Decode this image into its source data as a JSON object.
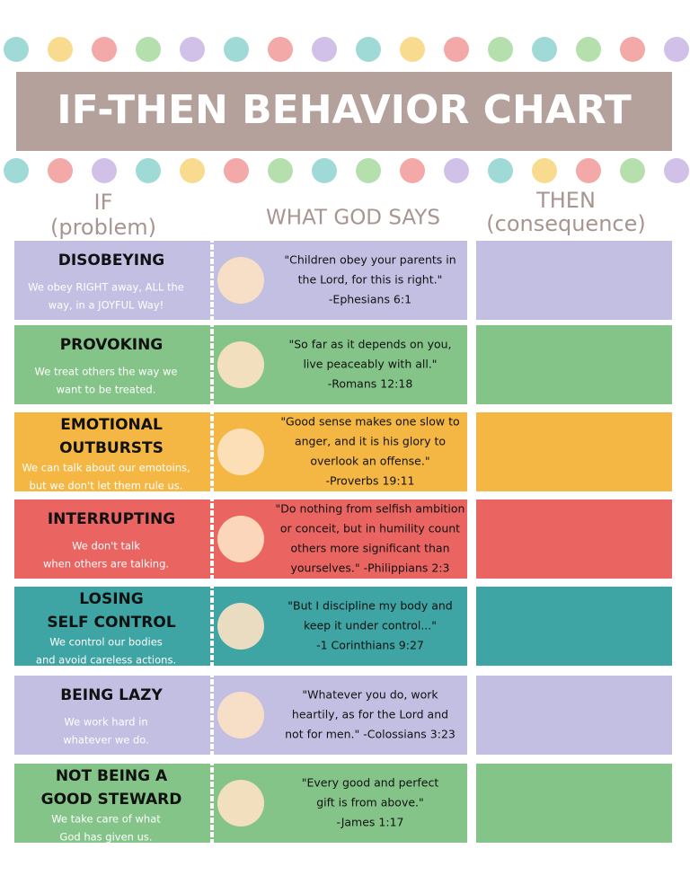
{
  "header": {
    "title": "IF-THEN BEHAVIOR CHART"
  },
  "columns": {
    "if": [
      "IF",
      "(problem)"
    ],
    "god": "WHAT GOD SAYS",
    "then": [
      "THEN",
      "(consequence)"
    ]
  },
  "rows": [
    {
      "problem": [
        "DISOBEYING"
      ],
      "desc": [
        "We obey RIGHT away, ALL the",
        "way, in a JOYFUL Way!"
      ],
      "verse": [
        "\"Children obey your parents in",
        "the Lord, for this is right.\"",
        "-Ephesians 6:1"
      ]
    },
    {
      "problem": [
        "PROVOKING"
      ],
      "desc": [
        "We treat others the way we",
        "want to be treated."
      ],
      "verse": [
        "\"So far as it depends on you,",
        "live peaceably with all.\"",
        "-Romans 12:18"
      ]
    },
    {
      "problem": [
        "EMOTIONAL",
        "OUTBURSTS"
      ],
      "desc": [
        "We can talk about our emotoins,",
        "but we don't let them rule us."
      ],
      "verse": [
        "\"Good sense makes one slow to",
        "anger, and it is his glory to",
        "overlook an offense.\"",
        "-Proverbs 19:11"
      ]
    },
    {
      "problem": [
        "INTERRUPTING"
      ],
      "desc": [
        "We don't talk",
        "when others are talking."
      ],
      "verse": [
        "\"Do nothing from selfish ambition",
        "or conceit, but in humility count",
        "others more significant than",
        "yourselves.\" -Philippians 2:3"
      ]
    },
    {
      "problem": [
        "LOSING",
        "SELF CONTROL"
      ],
      "desc": [
        "We control our bodies",
        "and avoid careless actions."
      ],
      "verse": [
        "\"But I discipline my body and",
        "keep it under control...\"",
        "-1 Corinthians 9:27"
      ]
    },
    {
      "problem": [
        "BEING LAZY"
      ],
      "desc": [
        "We work hard in",
        "whatever we do."
      ],
      "verse": [
        "\"Whatever you do, work",
        "heartily, as for the Lord and",
        "not for men.\" -Colossians 3:23"
      ]
    },
    {
      "problem": [
        "NOT BEING A",
        "GOOD STEWARD"
      ],
      "desc": [
        "We take care of what",
        "God has given us."
      ],
      "verse": [
        "\"Every good and perfect",
        "gift is from above.\"",
        "-James 1:17"
      ]
    }
  ]
}
